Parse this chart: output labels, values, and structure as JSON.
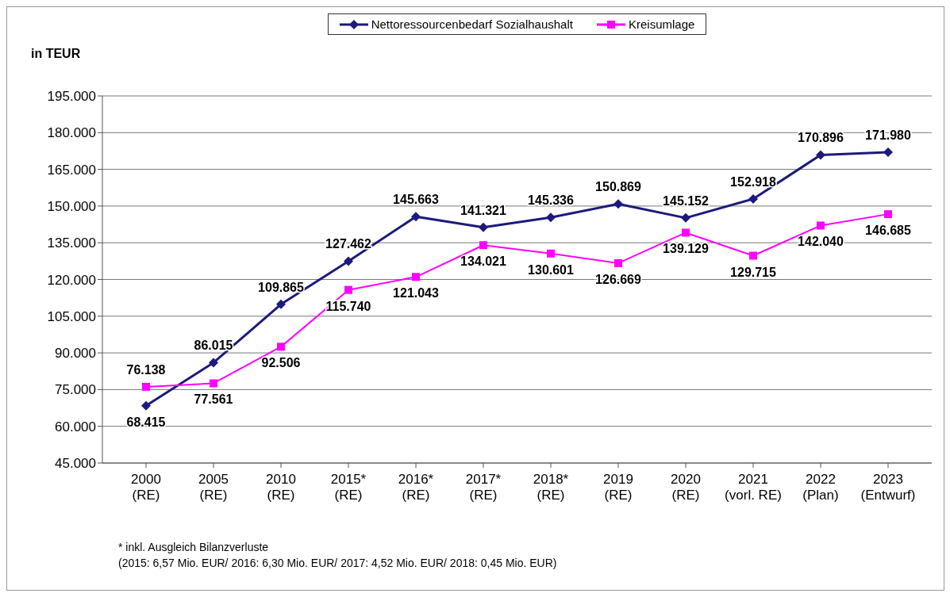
{
  "chart_data": {
    "type": "line",
    "ylabel": "in TEUR",
    "categories": [
      "2000\n(RE)",
      "2005\n(RE)",
      "2010\n(RE)",
      "2015*\n(RE)",
      "2016*\n(RE)",
      "2017*\n(RE)",
      "2018*\n(RE)",
      "2019\n(RE)",
      "2020\n(RE)",
      "2021\n(vorl. RE)",
      "2022\n(Plan)",
      "2023\n(Entwurf)"
    ],
    "series": [
      {
        "name": "Nettoressourcenbedarf Sozialhaushalt",
        "color": "#1c1a7c",
        "marker": "diamond",
        "values": [
          68415,
          86015,
          109865,
          127462,
          145663,
          141321,
          145336,
          150869,
          145152,
          152918,
          170896,
          171980
        ],
        "value_labels": [
          "68.415",
          "86.015",
          "109.865",
          "127.462",
          "145.663",
          "141.321",
          "145.336",
          "150.869",
          "145.152",
          "152.918",
          "170.896",
          "171.980"
        ]
      },
      {
        "name": "Kreisumlage",
        "color": "#ff00ff",
        "marker": "square",
        "values": [
          76138,
          77561,
          92506,
          115740,
          121043,
          134021,
          130601,
          126669,
          139129,
          129715,
          142040,
          146685
        ],
        "value_labels": [
          "76.138",
          "77.561",
          "92.506",
          "115.740",
          "121.043",
          "134.021",
          "130.601",
          "126.669",
          "139.129",
          "129.715",
          "142.040",
          "146.685"
        ]
      }
    ],
    "ylim": [
      45000,
      195000
    ],
    "yticks": [
      {
        "value": 45000,
        "label": "45.000"
      },
      {
        "value": 60000,
        "label": "60.000"
      },
      {
        "value": 75000,
        "label": "75.000"
      },
      {
        "value": 90000,
        "label": "90.000"
      },
      {
        "value": 105000,
        "label": "105.000"
      },
      {
        "value": 120000,
        "label": "120.000"
      },
      {
        "value": 135000,
        "label": "135.000"
      },
      {
        "value": 150000,
        "label": "150.000"
      },
      {
        "value": 165000,
        "label": "165.000"
      },
      {
        "value": 180000,
        "label": "180.000"
      },
      {
        "value": 195000,
        "label": "195.000"
      }
    ],
    "grid": "y",
    "legend": "top",
    "line_style": "solid",
    "annotations": [
      "* inkl. Ausgleich Bilanzverluste",
      "(2015: 6,57 Mio. EUR/ 2016: 6,30 Mio. EUR/ 2017: 4,52 Mio. EUR/ 2018: 0,45 Mio. EUR)"
    ]
  }
}
